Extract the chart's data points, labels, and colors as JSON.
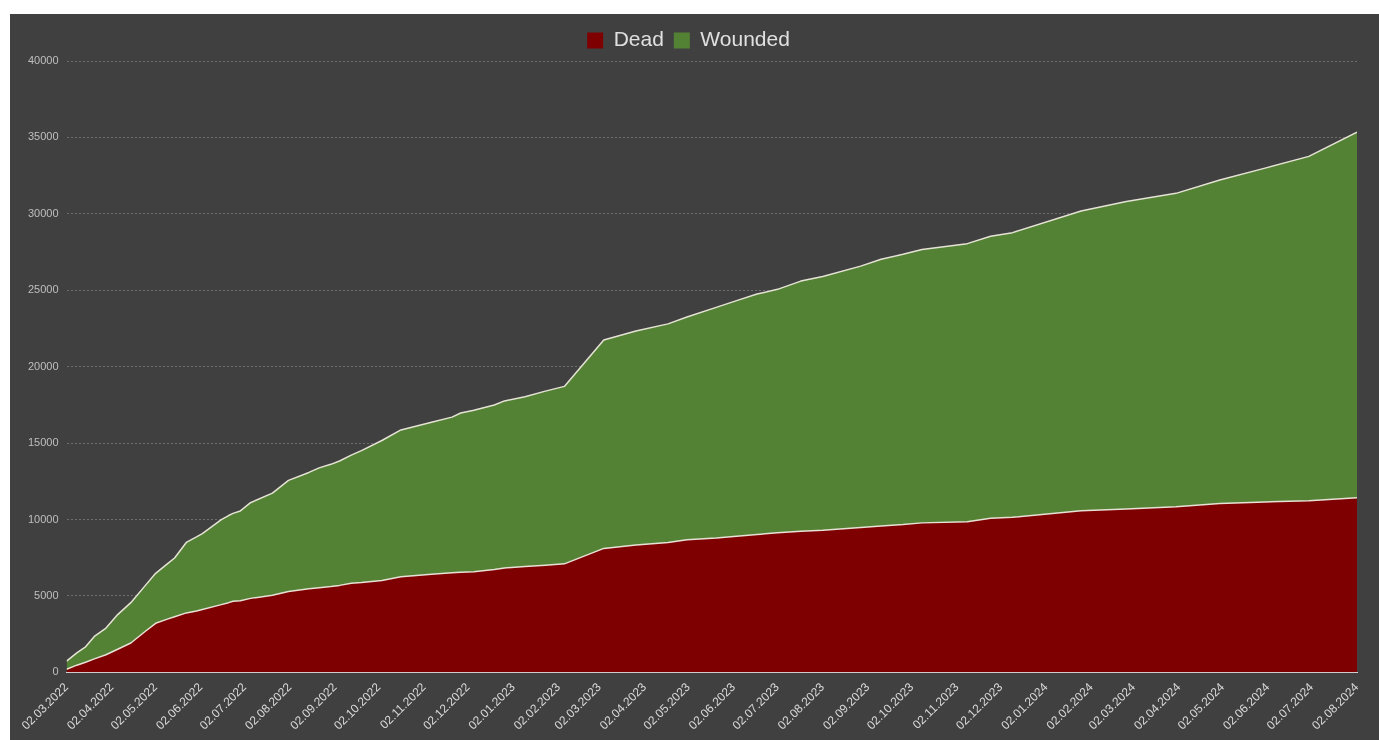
{
  "chart_data": {
    "type": "area",
    "stacked": true,
    "legend": "top",
    "grid": "y",
    "marker": "none",
    "x": [
      "2022-03-02",
      "2022-03-09",
      "2022-03-15",
      "2022-03-21",
      "2022-03-29",
      "2022-04-06",
      "2022-04-15",
      "2022-04-25",
      "2022-05-02",
      "2022-05-10",
      "2022-05-15",
      "2022-05-23",
      "2022-05-30",
      "2022-06-03",
      "2022-06-16",
      "2022-06-21",
      "2022-06-24",
      "2022-06-29",
      "2022-07-06",
      "2022-07-21",
      "2022-08-01",
      "2022-08-15",
      "2022-08-22",
      "2022-08-30",
      "2022-09-05",
      "2022-09-13",
      "2022-09-20",
      "2022-10-04",
      "2022-10-17",
      "2022-11-07",
      "2022-11-21",
      "2022-11-27",
      "2022-12-06",
      "2022-12-20",
      "2022-12-27",
      "2023-01-10",
      "2023-01-24",
      "2023-02-06",
      "2023-03-05",
      "2023-03-27",
      "2023-04-18",
      "2023-05-01",
      "2023-05-21",
      "2023-06-04",
      "2023-06-18",
      "2023-07-02",
      "2023-07-18",
      "2023-08-02",
      "2023-08-28",
      "2023-09-11",
      "2023-09-26",
      "2023-10-09",
      "2023-11-09",
      "2023-11-25",
      "2023-12-10",
      "2024-01-26",
      "2024-02-26",
      "2024-03-31",
      "2024-04-30",
      "2024-05-31",
      "2024-06-30",
      "2024-08-02"
    ],
    "series": [
      {
        "name": "Dead",
        "color": "#7f0000",
        "values": [
          200,
          470,
          660,
          880,
          1150,
          1510,
          1920,
          2690,
          3210,
          3480,
          3640,
          3890,
          4020,
          4110,
          4430,
          4560,
          4650,
          4680,
          4840,
          5040,
          5290,
          5470,
          5540,
          5610,
          5690,
          5830,
          5880,
          6010,
          6260,
          6420,
          6510,
          6550,
          6580,
          6730,
          6830,
          6920,
          7010,
          7100,
          8110,
          8340,
          8500,
          8680,
          8790,
          8900,
          9020,
          9130,
          9240,
          9290,
          9470,
          9580,
          9670,
          9780,
          9860,
          10080,
          10150,
          10570,
          10690,
          10830,
          11050,
          11150,
          11220,
          11420
        ]
      },
      {
        "name": "Wounded",
        "color": "#548235",
        "values": [
          530,
          800,
          1010,
          1470,
          1750,
          2270,
          2640,
          3000,
          3270,
          3620,
          3840,
          4610,
          4840,
          4970,
          5560,
          5700,
          5750,
          5880,
          6260,
          6690,
          7270,
          7610,
          7840,
          8000,
          8140,
          8380,
          8630,
          9160,
          9600,
          9940,
          10190,
          10420,
          10570,
          10760,
          10930,
          11110,
          11390,
          11610,
          13630,
          13990,
          14300,
          14570,
          15090,
          15420,
          15730,
          15930,
          16360,
          16610,
          17110,
          17450,
          17680,
          17880,
          18190,
          18450,
          18620,
          19610,
          20120,
          20510,
          21160,
          21840,
          22540,
          23920
        ]
      }
    ],
    "xlim": [
      "2022-03-02",
      "2024-08-02"
    ],
    "xticks": [
      {
        "value": "2022-03-02",
        "label": "02.03.2022"
      },
      {
        "value": "2022-04-02",
        "label": "02.04.2022"
      },
      {
        "value": "2022-05-02",
        "label": "02.05.2022"
      },
      {
        "value": "2022-06-02",
        "label": "02.06.2022"
      },
      {
        "value": "2022-07-02",
        "label": "02.07.2022"
      },
      {
        "value": "2022-08-02",
        "label": "02.08.2022"
      },
      {
        "value": "2022-09-02",
        "label": "02.09.2022"
      },
      {
        "value": "2022-10-02",
        "label": "02.10.2022"
      },
      {
        "value": "2022-11-02",
        "label": "02.11.2022"
      },
      {
        "value": "2022-12-02",
        "label": "02.12.2022"
      },
      {
        "value": "2023-01-02",
        "label": "02.01.2023"
      },
      {
        "value": "2023-02-02",
        "label": "02.02.2023"
      },
      {
        "value": "2023-03-02",
        "label": "02.03.2023"
      },
      {
        "value": "2023-04-02",
        "label": "02.04.2023"
      },
      {
        "value": "2023-05-02",
        "label": "02.05.2023"
      },
      {
        "value": "2023-06-02",
        "label": "02.06.2023"
      },
      {
        "value": "2023-07-02",
        "label": "02.07.2023"
      },
      {
        "value": "2023-08-02",
        "label": "02.08.2023"
      },
      {
        "value": "2023-09-02",
        "label": "02.09.2023"
      },
      {
        "value": "2023-10-02",
        "label": "02.10.2023"
      },
      {
        "value": "2023-11-02",
        "label": "02.11.2023"
      },
      {
        "value": "2023-12-02",
        "label": "02.12.2023"
      },
      {
        "value": "2024-01-02",
        "label": "02.01.2024"
      },
      {
        "value": "2024-02-02",
        "label": "02.02.2024"
      },
      {
        "value": "2024-03-02",
        "label": "02.03.2024"
      },
      {
        "value": "2024-04-02",
        "label": "02.04.2024"
      },
      {
        "value": "2024-05-02",
        "label": "02.05.2024"
      },
      {
        "value": "2024-06-02",
        "label": "02.06.2024"
      },
      {
        "value": "2024-07-02",
        "label": "02.07.2024"
      },
      {
        "value": "2024-08-02",
        "label": "02.08.2024"
      }
    ],
    "ylim": [
      0,
      40000
    ],
    "yticks": [
      0,
      5000,
      10000,
      15000,
      20000,
      25000,
      30000,
      35000,
      40000
    ]
  }
}
